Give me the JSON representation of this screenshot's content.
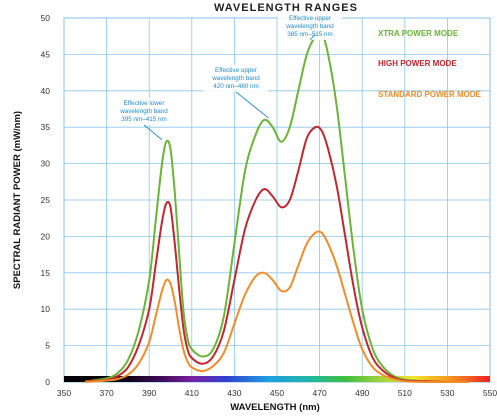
{
  "chart_data": {
    "type": "line",
    "title": "WAVELENGTH RANGES",
    "xlabel": "WAVELENGTH (nm)",
    "ylabel": "SPECTRAL RADIANT POWER (mW/nm)",
    "xlim": [
      350,
      550
    ],
    "ylim": [
      0,
      50
    ],
    "x_ticks": [
      "350",
      "370",
      "390",
      "410",
      "430",
      "450",
      "470",
      "490",
      "510",
      "530",
      "550"
    ],
    "y_ticks": [
      "0",
      "5",
      "10",
      "15",
      "20",
      "25",
      "30",
      "35",
      "40",
      "45",
      "50"
    ],
    "grid": true,
    "legend_position": "top-right",
    "x": [
      360,
      370,
      375,
      380,
      385,
      390,
      393,
      396,
      398,
      400,
      402,
      404,
      406,
      408,
      410,
      415,
      420,
      425,
      430,
      435,
      440,
      444,
      448,
      452,
      456,
      460,
      464,
      468,
      471,
      474,
      478,
      482,
      486,
      490,
      495,
      500,
      505,
      510,
      520,
      530,
      540
    ],
    "series": [
      {
        "name": "XTRA POWER MODE",
        "color": "#6ab535",
        "values": [
          0.1,
          0.5,
          1.2,
          3,
          7,
          14,
          22,
          30,
          33,
          32,
          26,
          18,
          10,
          6,
          4.5,
          3.5,
          4.5,
          9,
          19,
          29,
          34,
          36,
          35,
          33,
          35,
          40,
          45,
          47.5,
          48,
          45,
          38,
          28,
          18,
          10,
          4.5,
          2,
          0.8,
          0.3,
          0.1,
          0,
          0
        ]
      },
      {
        "name": "HIGH POWER MODE",
        "color": "#c2262e",
        "values": [
          0.1,
          0.3,
          0.8,
          2,
          5,
          10,
          16,
          22,
          24.5,
          24,
          19,
          13,
          7.5,
          4.5,
          3.3,
          2.5,
          3.5,
          7,
          14,
          21,
          25,
          26.5,
          25.5,
          24,
          25,
          29,
          33.5,
          35,
          34.5,
          32,
          27,
          20,
          13,
          7.5,
          3.3,
          1.5,
          0.6,
          0.2,
          0.1,
          0,
          0
        ]
      },
      {
        "name": "STANDARD POWER MODE",
        "color": "#f28c28",
        "values": [
          0,
          0.2,
          0.4,
          1,
          2.5,
          5.5,
          9,
          12.5,
          14,
          13.5,
          11,
          7.5,
          4.5,
          2.8,
          2,
          1.5,
          2.2,
          4,
          8,
          12,
          14.5,
          15,
          14,
          12.5,
          13,
          16,
          19,
          20.5,
          20.5,
          19,
          16,
          12,
          8,
          4.5,
          2,
          0.9,
          0.4,
          0.1,
          0,
          0,
          0
        ]
      }
    ],
    "annotations": [
      {
        "lines": [
          "Effective lower",
          "wavelength band",
          "395 nm–415 nm"
        ],
        "target": [
          396,
          33
        ]
      },
      {
        "lines": [
          "Effective upper",
          "wavelength band",
          "420 nm–460 nm"
        ],
        "target": [
          446,
          36
        ]
      },
      {
        "lines": [
          "Effective upper",
          "wavelength band",
          "385 nm–515 nm"
        ],
        "target": [
          468,
          47.5
        ]
      }
    ]
  }
}
